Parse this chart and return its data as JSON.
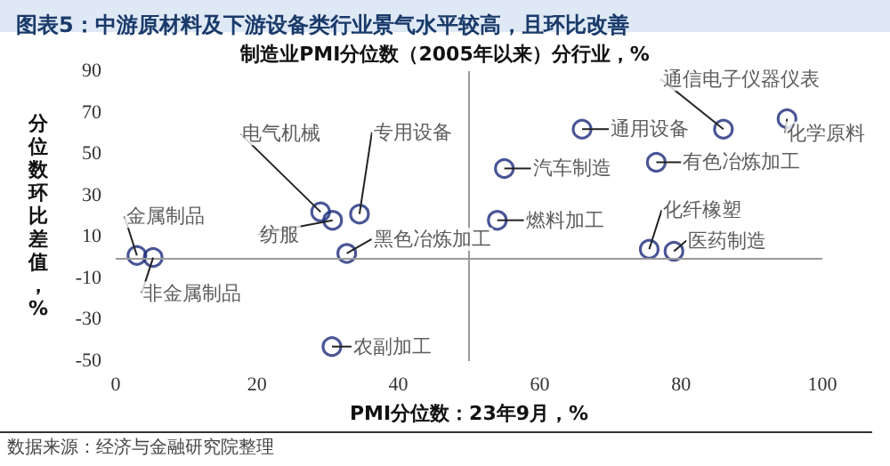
{
  "chart_data": {
    "type": "scatter",
    "title": "图表5：中游原材料及下游设备类行业景气水平较高，且环比改善",
    "subtitle": "制造业PMI分位数（2005年以来）分行业，%",
    "xlabel": "PMI分位数：23年9月，%",
    "ylabel": "分位数环比差值，%",
    "x": [
      3,
      5.3,
      29,
      30.7,
      34.5,
      32.7,
      30.6,
      66,
      86,
      95,
      55,
      76.5,
      54,
      75.5,
      79
    ],
    "series": [
      {
        "color": "#1c2a7a",
        "values": [
          1,
          0,
          22,
          18,
          21,
          2,
          -43,
          62,
          62,
          67,
          43,
          46,
          18,
          4,
          3
        ]
      }
    ],
    "annotations": [
      {
        "text": "金属制品",
        "x": 3,
        "y": 1
      },
      {
        "text": "非金属制品",
        "x": 5.3,
        "y": 0
      },
      {
        "text": "电气机械",
        "x": 29,
        "y": 22
      },
      {
        "text": "纺服",
        "x": 30.7,
        "y": 18
      },
      {
        "text": "专用设备",
        "x": 34.5,
        "y": 21
      },
      {
        "text": "黑色冶炼加工",
        "x": 32.7,
        "y": 2
      },
      {
        "text": "农副加工",
        "x": 30.6,
        "y": -43
      },
      {
        "text": "通用设备",
        "x": 66,
        "y": 62
      },
      {
        "text": "通信电子仪器仪表",
        "x": 86,
        "y": 62
      },
      {
        "text": "化学原料",
        "x": 95,
        "y": 67
      },
      {
        "text": "汽车制造",
        "x": 55,
        "y": 43
      },
      {
        "text": "有色冶炼加工",
        "x": 76.5,
        "y": 46
      },
      {
        "text": "燃料加工",
        "x": 54,
        "y": 18
      },
      {
        "text": "化纤橡塑",
        "x": 75.5,
        "y": 4
      },
      {
        "text": "医药制造",
        "x": 79,
        "y": 3
      },
      "数据来源：经济与金融研究院整理"
    ],
    "xlim": [
      0,
      100
    ],
    "xticks": [
      0,
      20,
      40,
      60,
      80,
      100
    ],
    "ylim": [
      -50,
      90
    ],
    "yticks": [
      -50,
      -30,
      -10,
      10,
      30,
      50,
      70,
      90
    ],
    "ref_lines": [
      {
        "axis": "x",
        "value": 50,
        "color": "#999999"
      },
      {
        "axis": "y",
        "value": 0,
        "color": "#999999"
      }
    ],
    "grid": false,
    "marker": "circle"
  }
}
